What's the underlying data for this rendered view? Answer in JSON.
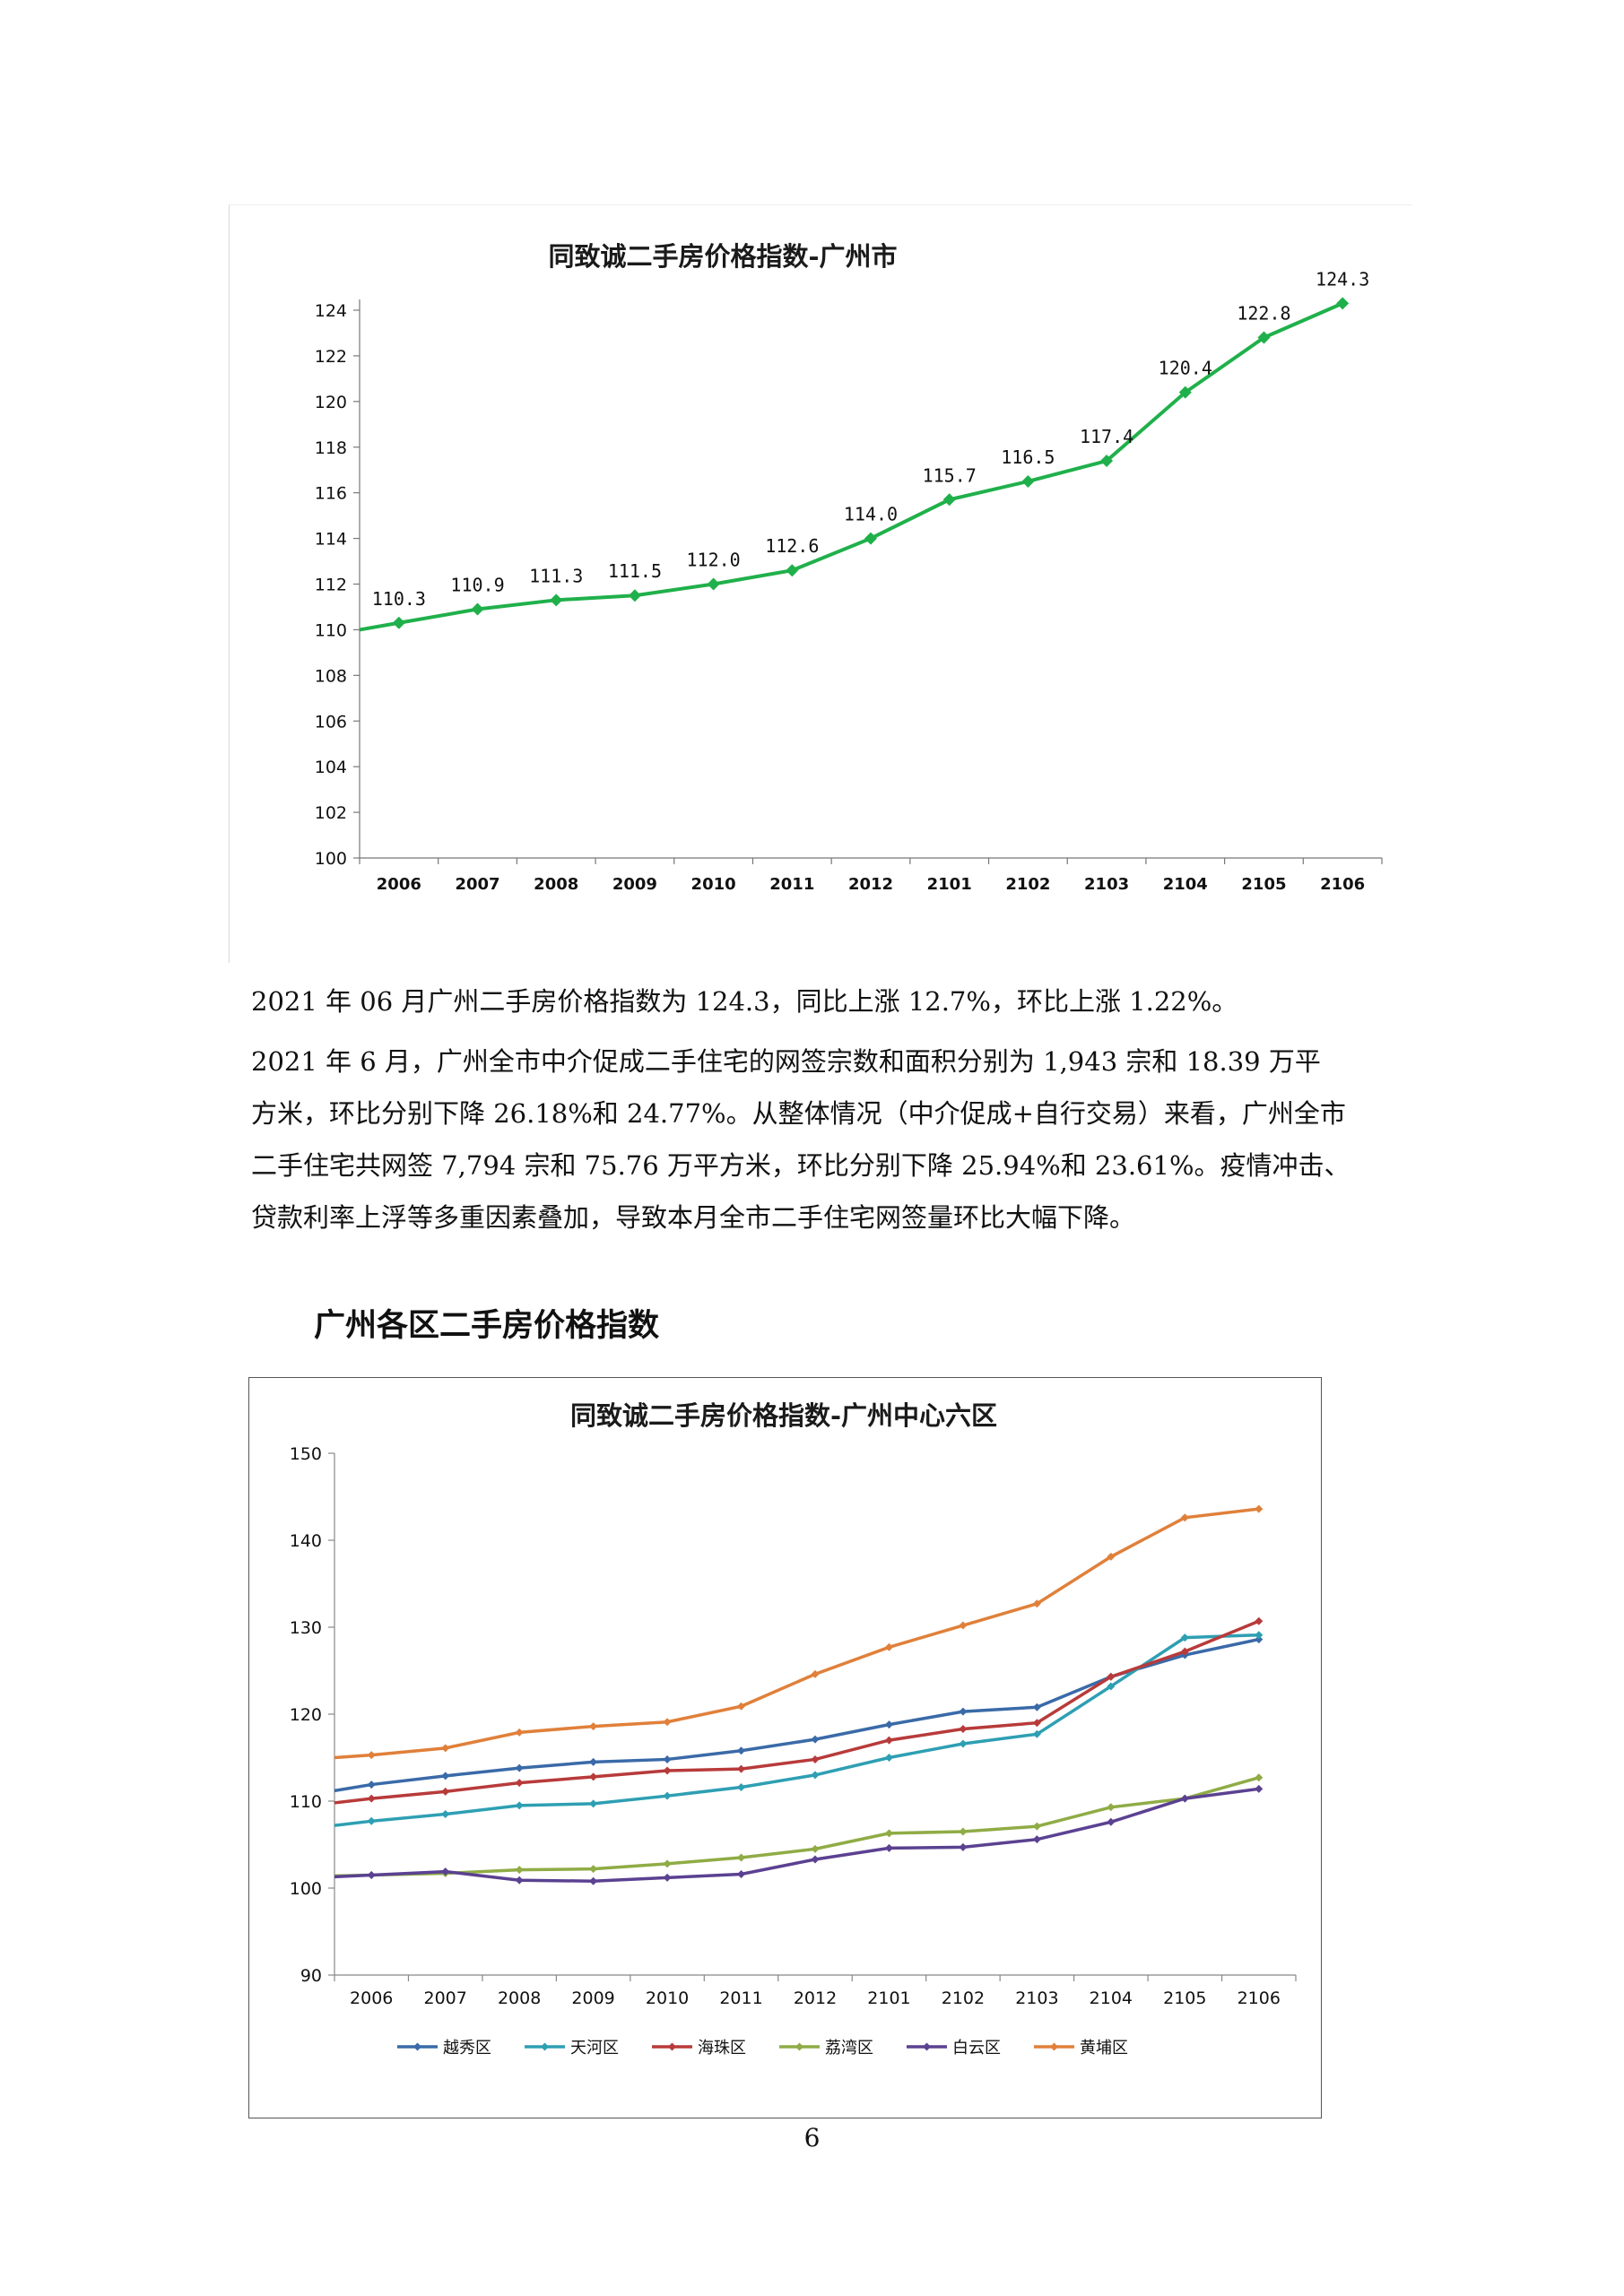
{
  "chart_data": [
    {
      "type": "line",
      "title": "同致诚二手房价格指数-广州市",
      "categories": [
        "2006",
        "2007",
        "2008",
        "2009",
        "2010",
        "2011",
        "2012",
        "2101",
        "2102",
        "2103",
        "2104",
        "2105",
        "2106"
      ],
      "series": [
        {
          "values": [
            110.3,
            110.9,
            111.3,
            111.5,
            112.0,
            112.6,
            114.0,
            115.7,
            116.5,
            117.4,
            120.4,
            122.8,
            124.3
          ],
          "labels": [
            "110.3",
            "110.9",
            "111.3",
            "111.5",
            "112.0",
            "112.6",
            "114.0",
            "115.7",
            "116.5",
            "117.4",
            "120.4",
            "122.8",
            "124.3"
          ],
          "color": "#20b04b"
        }
      ],
      "start_value": 110.0,
      "ylim": [
        100,
        124
      ],
      "yticks": [
        "100",
        "102",
        "104",
        "106",
        "108",
        "110",
        "112",
        "114",
        "116",
        "118",
        "120",
        "122",
        "124"
      ],
      "grid": false,
      "legend": "none"
    },
    {
      "type": "line",
      "title": "同致诚二手房价格指数-广州中心六区",
      "categories": [
        "2006",
        "2007",
        "2008",
        "2009",
        "2010",
        "2011",
        "2012",
        "2101",
        "2102",
        "2103",
        "2104",
        "2105",
        "2106"
      ],
      "ylim": [
        90,
        150
      ],
      "yticks": [
        "90",
        "100",
        "110",
        "120",
        "130",
        "140",
        "150"
      ],
      "grid": false,
      "legend": "bottom",
      "series": [
        {
          "name": "越秀区",
          "color": "#3a6aa8",
          "start": 111.2,
          "values": [
            111.9,
            112.9,
            113.8,
            114.5,
            114.8,
            115.8,
            117.1,
            118.8,
            120.3,
            120.8,
            124.3,
            126.8,
            128.6
          ]
        },
        {
          "name": "天河区",
          "color": "#2e9fb3",
          "start": 107.2,
          "values": [
            107.7,
            108.5,
            109.5,
            109.7,
            110.6,
            111.6,
            113.0,
            115.0,
            116.6,
            117.7,
            123.2,
            128.8,
            129.1
          ]
        },
        {
          "name": "海珠区",
          "color": "#b83a3a",
          "start": 109.8,
          "values": [
            110.3,
            111.1,
            112.1,
            112.8,
            113.5,
            113.7,
            114.8,
            117.0,
            118.3,
            119.0,
            124.3,
            127.2,
            130.7
          ]
        },
        {
          "name": "荔湾区",
          "color": "#8fac45",
          "start": 101.4,
          "values": [
            101.5,
            101.7,
            102.1,
            102.2,
            102.8,
            103.5,
            104.5,
            106.3,
            106.5,
            107.1,
            109.3,
            110.3,
            112.7
          ]
        },
        {
          "name": "白云区",
          "color": "#5b4191",
          "start": 101.3,
          "values": [
            101.5,
            101.9,
            100.9,
            100.8,
            101.2,
            101.6,
            103.3,
            104.6,
            104.7,
            105.6,
            107.6,
            110.3,
            111.4
          ]
        },
        {
          "name": "黄埔区",
          "color": "#e0803a",
          "start": 115.0,
          "values": [
            115.3,
            116.1,
            117.9,
            118.6,
            119.1,
            120.9,
            124.6,
            127.7,
            130.2,
            132.7,
            138.1,
            142.6,
            143.6
          ]
        }
      ]
    }
  ],
  "text": {
    "para1_line1": "2021 年 06 月广州二手房价格指数为 124.3，同比上涨 12.7%，环比上涨 1.22%。",
    "para2_line1": "2021 年 6 月，广州全市中介促成二手住宅的网签宗数和面积分别为 1,943 宗和 18.39 万平",
    "para2_line2": "方米，环比分别下降 26.18%和 24.77%。从整体情况（中介促成+自行交易）来看，广州全市",
    "para2_line3": "二手住宅共网签 7,794 宗和 75.76 万平方米，环比分别下降 25.94%和 23.61%。疫情冲击、",
    "para2_line4": "贷款利率上浮等多重因素叠加，导致本月全市二手住宅网签量环比大幅下降。",
    "section_heading": "广州各区二手房价格指数",
    "page_number": "6"
  }
}
